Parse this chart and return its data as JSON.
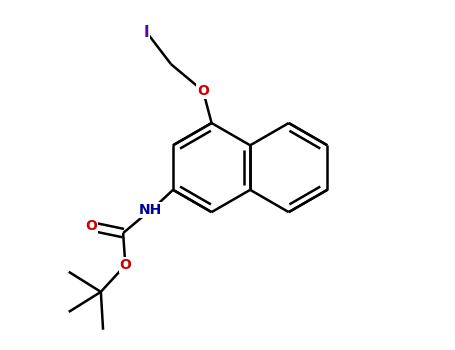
{
  "background_color": "#ffffff",
  "bond_color": "#000000",
  "atom_colors": {
    "I": "#660099",
    "O": "#cc0000",
    "N": "#000099",
    "C": "#000000"
  },
  "bond_width": 1.8,
  "figsize": [
    4.55,
    3.5
  ],
  "dpi": 100,
  "bl": 0.38
}
